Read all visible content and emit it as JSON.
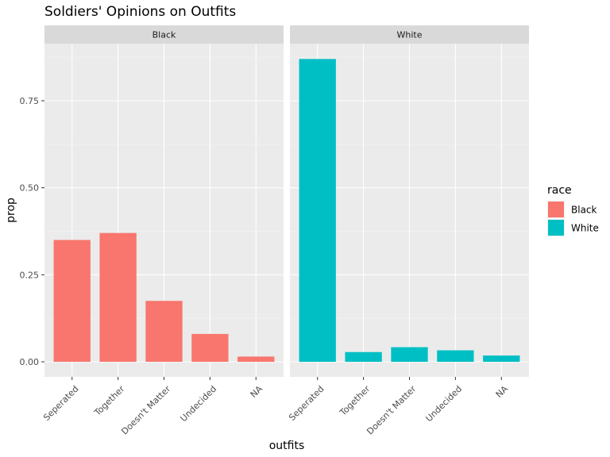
{
  "chart_data": {
    "type": "bar",
    "title": "Soldiers' Opinions on Outfits",
    "xlabel": "outfits",
    "ylabel": "prop",
    "ylim": [
      0,
      0.9
    ],
    "y_ticks": [
      "0.00",
      "0.25",
      "0.50",
      "0.75"
    ],
    "categories": [
      "Seperated",
      "Together",
      "Doesn't Matter",
      "Undecided",
      "NA"
    ],
    "facets": [
      {
        "name": "Black",
        "color": "#F8766D",
        "values": [
          0.35,
          0.37,
          0.175,
          0.08,
          0.015
        ]
      },
      {
        "name": "White",
        "color": "#00BFC4",
        "values": [
          0.87,
          0.028,
          0.042,
          0.033,
          0.018
        ]
      }
    ],
    "legend": {
      "title": "race",
      "position": "right",
      "items": [
        {
          "label": "Black",
          "color": "#F8766D"
        },
        {
          "label": "White",
          "color": "#00BFC4"
        }
      ]
    },
    "grid": true
  }
}
